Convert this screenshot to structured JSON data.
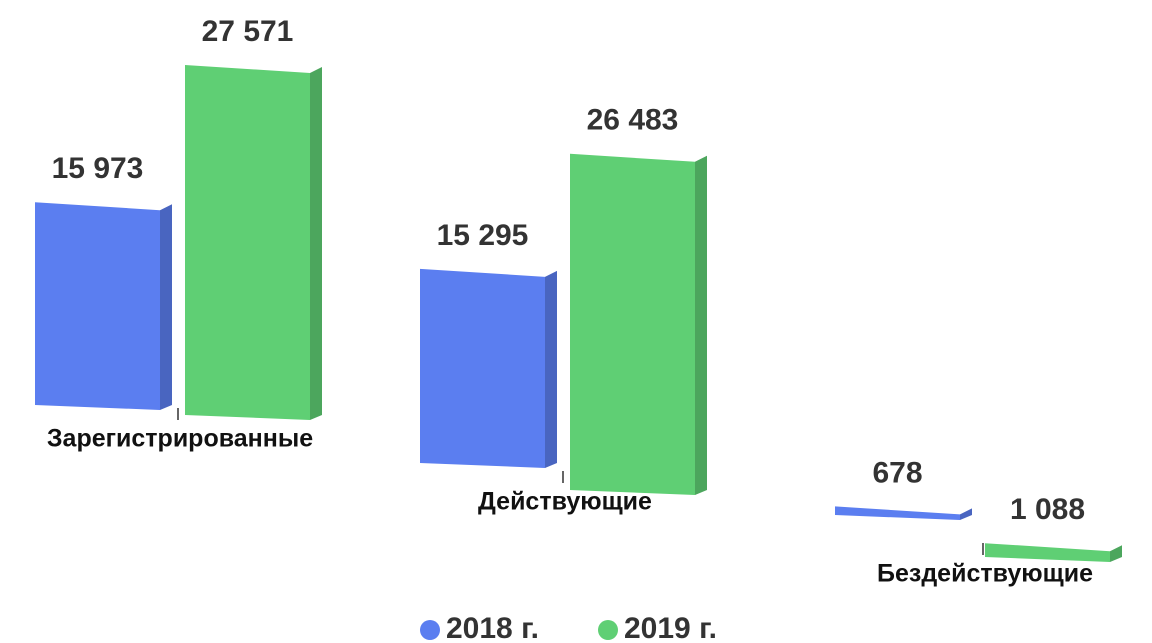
{
  "chart_data": {
    "type": "bar",
    "categories": [
      "Зарегистрированные",
      "Действующие",
      "Бездействующие"
    ],
    "series": [
      {
        "name": "2018 г.",
        "color": "#5b7ef0",
        "values": [
          15973,
          15295,
          678
        ],
        "value_labels": [
          "15 973",
          "15 295",
          "678"
        ]
      },
      {
        "name": "2019 г.",
        "color": "#5fcf74",
        "values": [
          27571,
          26483,
          1088
        ],
        "value_labels": [
          "27 571",
          "26 483",
          "1 088"
        ]
      }
    ],
    "legend": "bottom"
  }
}
